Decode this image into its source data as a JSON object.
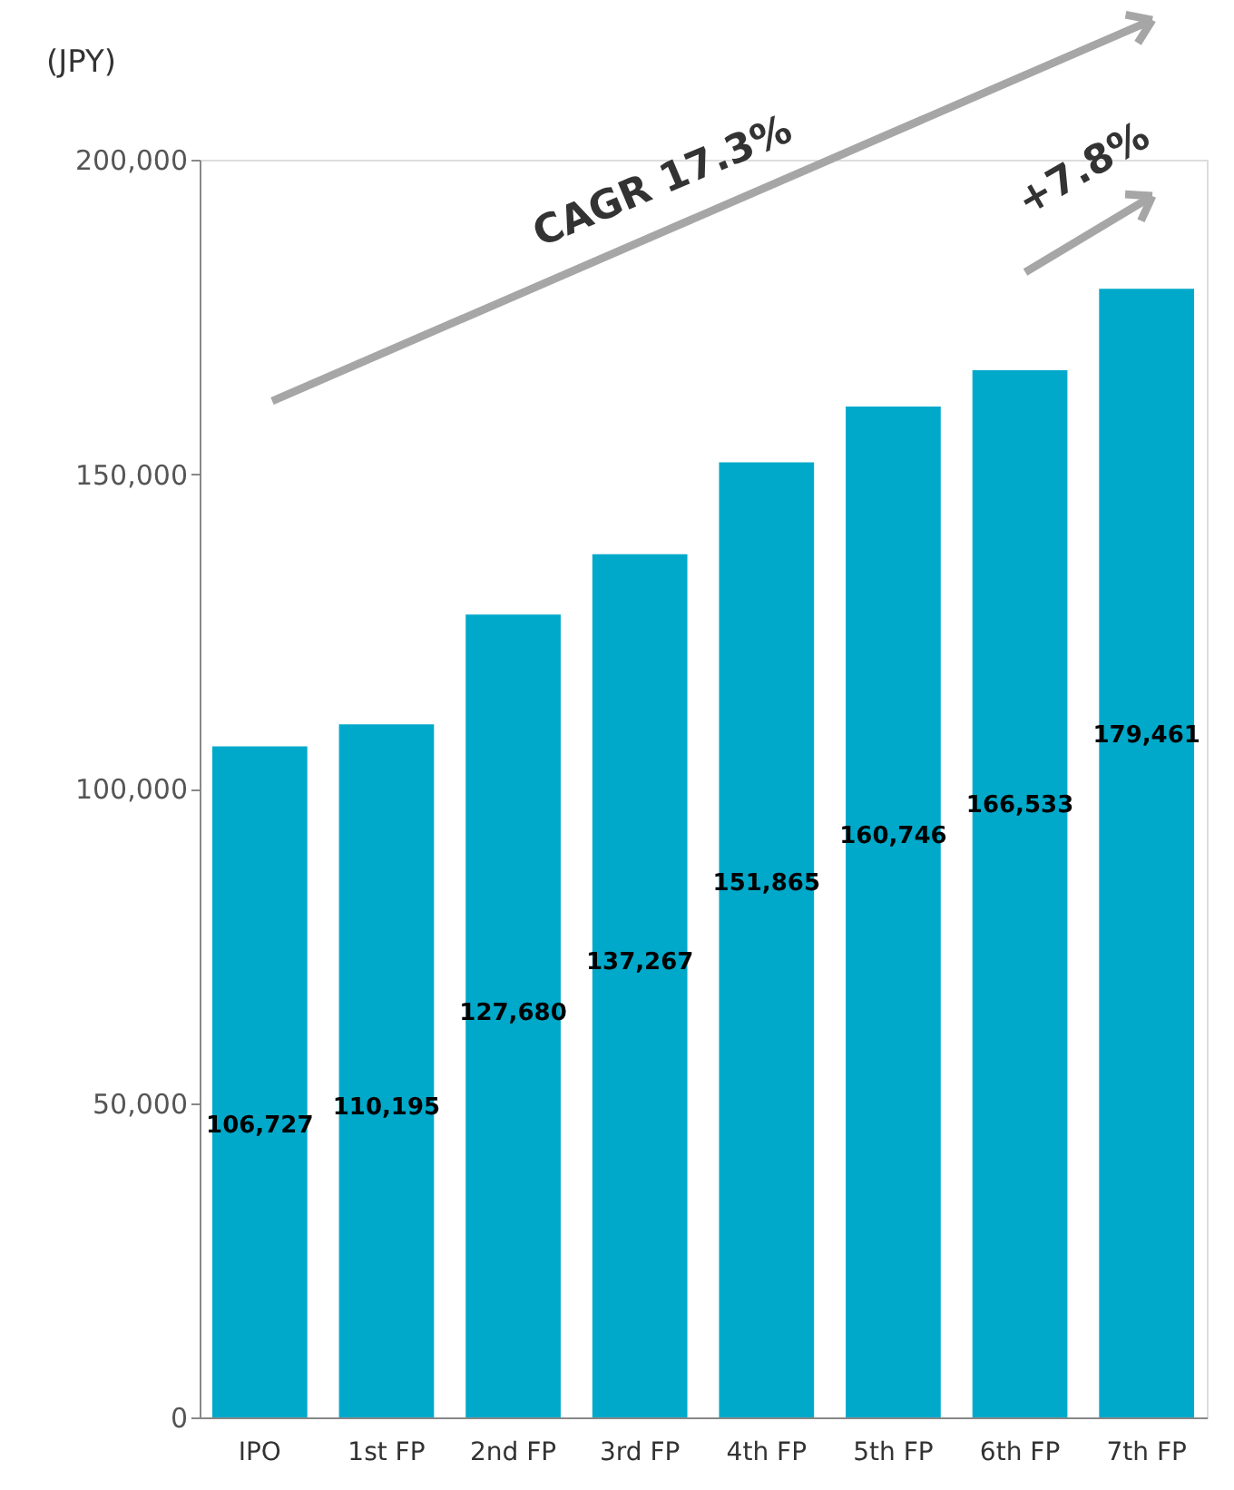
{
  "chart_data": {
    "type": "bar",
    "ylabel": "(JPY)",
    "categories": [
      "IPO",
      "1st FP",
      "2nd FP",
      "3rd FP",
      "4th FP",
      "5th FP",
      "6th FP",
      "7th FP"
    ],
    "values": [
      106727,
      110195,
      127680,
      137267,
      151865,
      160746,
      166533,
      179461
    ],
    "color": "#00a9ca",
    "ylim": [
      0,
      200000
    ],
    "yticks": [
      0,
      {
        "value": 50000,
        "label": "50,000"
      },
      {
        "value": 100000,
        "label": "100,000"
      },
      {
        "value": 150000,
        "label": "150,000"
      },
      {
        "value": 200000,
        "label": "200,000"
      }
    ],
    "grid": false,
    "value_labels": [
      "106,727",
      "110,195",
      "127,680",
      "137,267",
      "151,865",
      "160,746",
      "166,533",
      "179,461"
    ],
    "annotations": [
      "CAGR 17.3%",
      "+7.8%"
    ]
  }
}
